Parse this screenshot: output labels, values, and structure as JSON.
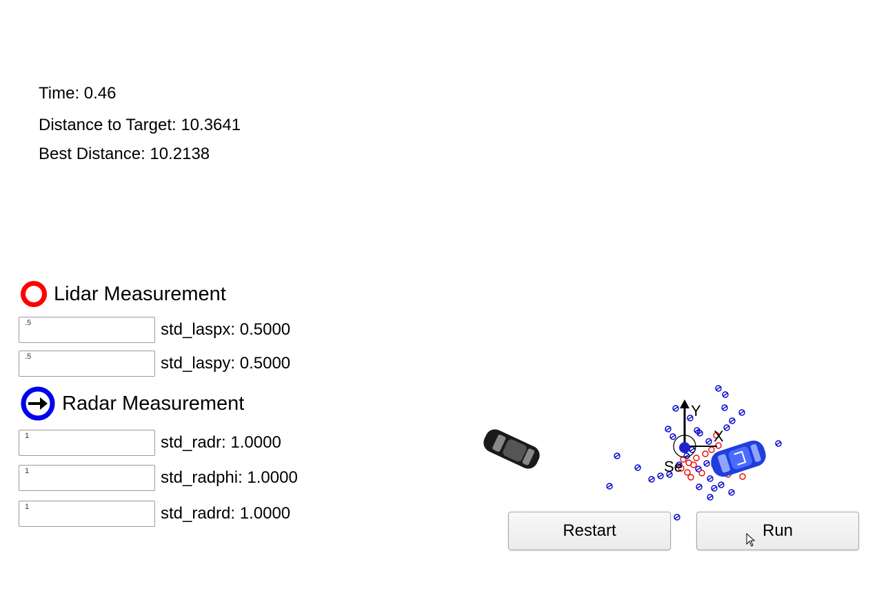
{
  "stats": {
    "time": "Time: 0.46",
    "distance": "Distance to Target: 10.3641",
    "best": "Best Distance: 10.2138"
  },
  "legend": {
    "lidar": "Lidar Measurement",
    "radar": "Radar Measurement"
  },
  "params": {
    "laspx": {
      "value": ".5",
      "label": "std_laspx: 0.5000"
    },
    "laspy": {
      "value": ".5",
      "label": "std_laspy: 0.5000"
    },
    "radr": {
      "value": "1",
      "label": "std_radr: 1.0000"
    },
    "radphi": {
      "value": "1",
      "label": "std_radphi: 1.0000"
    },
    "radrd": {
      "value": "1",
      "label": "std_radrd: 1.0000"
    }
  },
  "scene": {
    "axis_y": "Y",
    "axis_x": "X",
    "sensor_label": "Se"
  },
  "buttons": {
    "restart": "Restart",
    "run": "Run"
  },
  "colors": {
    "lidar": "#ff0000",
    "radar": "#0000ee",
    "target_car": "#1f3fdd",
    "obstacle_car": "#1a1a1a"
  },
  "icons": [
    "lidar-ring-icon",
    "radar-ring-icon",
    "arrow-right-icon",
    "mouse-pointer-icon"
  ]
}
